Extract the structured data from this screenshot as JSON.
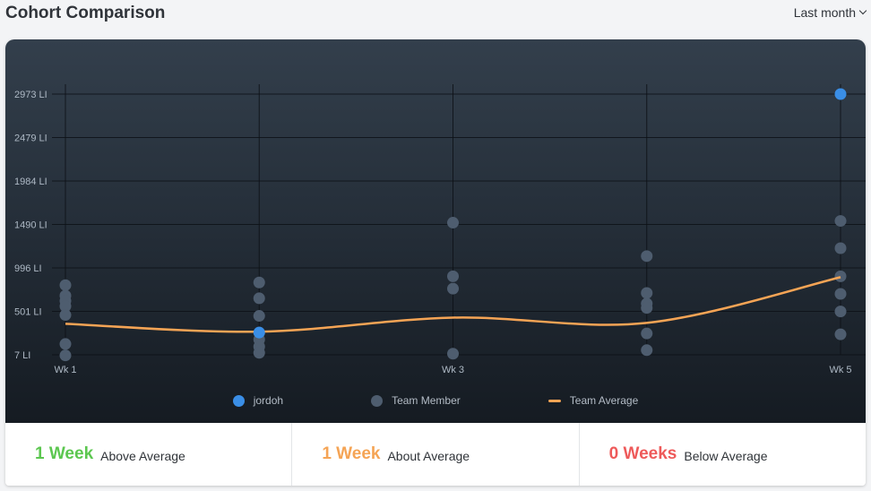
{
  "header": {
    "title": "Cohort Comparison",
    "period": "Last month"
  },
  "legend": {
    "user": "jordoh",
    "member": "Team Member",
    "average": "Team Average"
  },
  "colors": {
    "user": "#3a8ee6",
    "member": "#4e5d6f",
    "average": "#f5a455",
    "above": "#5cc750",
    "about": "#f5a455",
    "below": "#ee5a5a"
  },
  "stats": [
    {
      "value": "1 Week",
      "label": "Above Average",
      "color": "#5cc750"
    },
    {
      "value": "1 Week",
      "label": "About Average",
      "color": "#f5a455"
    },
    {
      "value": "0 Weeks",
      "label": "Below Average",
      "color": "#ee5a5a"
    }
  ],
  "chart_data": {
    "type": "scatter",
    "y_ticks": [
      "2973 LI",
      "2479 LI",
      "1984 LI",
      "1490 LI",
      "996 LI",
      "501 LI",
      "7 LI"
    ],
    "y_tick_values": [
      2973,
      2479,
      1984,
      1490,
      996,
      501,
      7
    ],
    "ylim": [
      7,
      2973
    ],
    "x_ticks": [
      "Wk 1",
      "",
      "Wk 3",
      "",
      "Wk 5"
    ],
    "weeks": [
      1,
      2,
      3,
      4,
      5
    ],
    "series": [
      {
        "name": "Team Member",
        "points": [
          [
            1,
            800
          ],
          [
            1,
            680
          ],
          [
            1,
            620
          ],
          [
            1,
            560
          ],
          [
            1,
            460
          ],
          [
            1,
            130
          ],
          [
            1,
            0
          ],
          [
            2,
            830
          ],
          [
            2,
            650
          ],
          [
            2,
            450
          ],
          [
            2,
            260
          ],
          [
            2,
            180
          ],
          [
            2,
            100
          ],
          [
            2,
            30
          ],
          [
            3,
            1510
          ],
          [
            3,
            900
          ],
          [
            3,
            760
          ],
          [
            3,
            20
          ],
          [
            4,
            1130
          ],
          [
            4,
            710
          ],
          [
            4,
            590
          ],
          [
            4,
            540
          ],
          [
            4,
            250
          ],
          [
            4,
            60
          ],
          [
            5,
            1530
          ],
          [
            5,
            1220
          ],
          [
            5,
            900
          ],
          [
            5,
            700
          ],
          [
            5,
            500
          ],
          [
            5,
            240
          ]
        ]
      },
      {
        "name": "jordoh",
        "points": [
          [
            2,
            260
          ],
          [
            5,
            2973
          ]
        ]
      },
      {
        "name": "Team Average",
        "values": [
          360,
          270,
          430,
          370,
          890
        ]
      }
    ]
  }
}
